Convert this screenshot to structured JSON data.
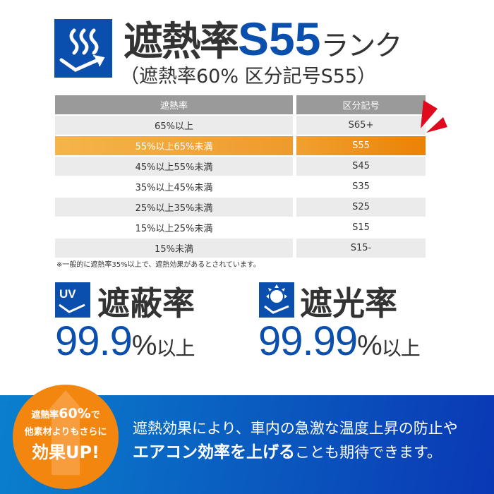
{
  "header": {
    "title_prefix": "遮熱率",
    "title_rank": "S55",
    "title_suffix": "ランク",
    "subtitle": "（遮熱率60% 区分記号S55）"
  },
  "table": {
    "headers": [
      "遮熱率",
      "区分記号"
    ],
    "rows": [
      {
        "rate": "65%以上",
        "code": "S65+"
      },
      {
        "rate": "55%以上65%未満",
        "code": "S55",
        "highlighted": true
      },
      {
        "rate": "45%以上55%未満",
        "code": "S45"
      },
      {
        "rate": "35%以上45%未満",
        "code": "S35"
      },
      {
        "rate": "25%以上35%未満",
        "code": "S25"
      },
      {
        "rate": "15%以上25%未満",
        "code": "S15"
      },
      {
        "rate": "15%未満",
        "code": "S15-"
      }
    ],
    "note": "※一般的に遮熱率35%以上で、遮熱効果があるとされています。"
  },
  "uv": {
    "icon_label": "UV",
    "title": "遮蔽率",
    "value": "99.9",
    "unit": "%",
    "suffix": "以上"
  },
  "light": {
    "title": "遮光率",
    "value": "99.99",
    "unit": "%",
    "suffix": "以上"
  },
  "badge": {
    "line1_a": "遮熱率",
    "line1_b": "60%",
    "line1_c": "で",
    "line2": "他素材よりもさらに",
    "line3": "効果UP!"
  },
  "message": {
    "line1": "遮熱効果により、車内の急激な温度上昇の防止や",
    "line2_bold": "エアコン効率を上げる",
    "line2_rest": "ことも期待できます。"
  },
  "colors": {
    "blue": "#0a4fad",
    "orange": "#f3860e",
    "red_accent": "#e00a1e"
  }
}
